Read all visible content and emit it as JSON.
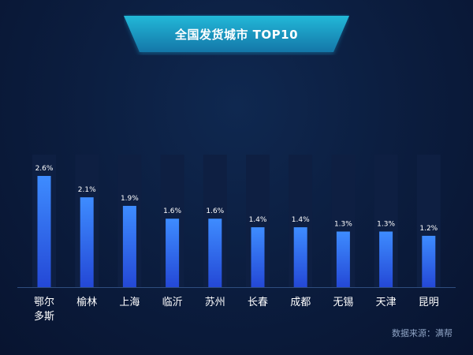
{
  "title": "全国发货城市 TOP10",
  "source": "数据来源：满帮",
  "colors": {
    "background": "#0b1c3d",
    "banner": "#1aa3c8",
    "bar_top": "#3e8cff",
    "bar_bottom": "#2448d6",
    "track": "#0e1f42",
    "label": "#ffffff"
  },
  "chart_data": {
    "type": "bar",
    "title": "全国发货城市 TOP10",
    "categories": [
      "鄂尔多斯",
      "榆林",
      "上海",
      "临沂",
      "苏州",
      "长春",
      "成都",
      "无锡",
      "天津",
      "昆明"
    ],
    "category_lines": [
      [
        "鄂尔",
        "多斯"
      ],
      [
        "榆林"
      ],
      [
        "上海"
      ],
      [
        "临沂"
      ],
      [
        "苏州"
      ],
      [
        "长春"
      ],
      [
        "成都"
      ],
      [
        "无锡"
      ],
      [
        "天津"
      ],
      [
        "昆明"
      ]
    ],
    "values": [
      2.6,
      2.1,
      1.9,
      1.6,
      1.6,
      1.4,
      1.4,
      1.3,
      1.3,
      1.2
    ],
    "value_labels": [
      "2.6%",
      "2.1%",
      "1.9%",
      "1.6%",
      "1.6%",
      "1.4%",
      "1.4%",
      "1.3%",
      "1.3%",
      "1.2%"
    ],
    "ylim": [
      0,
      2.6
    ],
    "grid": false,
    "legend": "none"
  }
}
